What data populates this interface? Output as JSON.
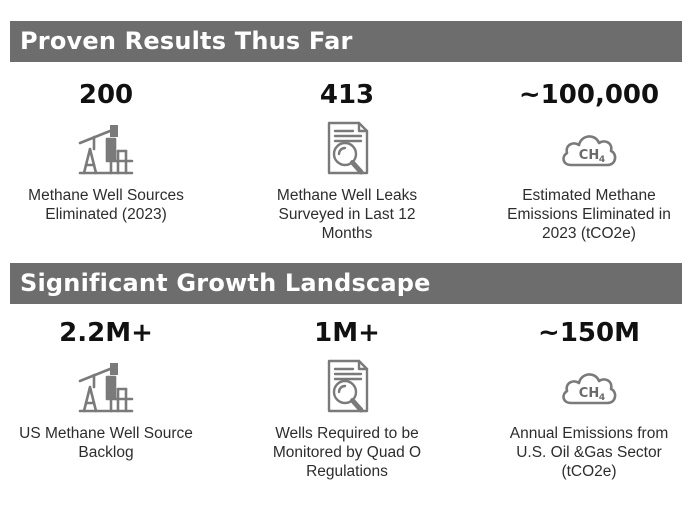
{
  "sections": [
    {
      "title": "Proven Results Thus Far",
      "stats": [
        {
          "value": "200",
          "icon": "pumpjack-icon",
          "label_lines": [
            "Methane Well Sources",
            "Eliminated (2023)"
          ]
        },
        {
          "value": "413",
          "icon": "document-magnifier-icon",
          "label_lines": [
            "Methane Well Leaks",
            "Surveyed in Last 12",
            "Months"
          ]
        },
        {
          "value": "~100,000",
          "icon": "ch4-cloud-icon",
          "label_lines": [
            "Estimated Methane",
            "Emissions Eliminated in",
            "2023 (tCO2e)"
          ]
        }
      ]
    },
    {
      "title": "Significant Growth Landscape",
      "stats": [
        {
          "value": "2.2M+",
          "icon": "pumpjack-icon",
          "label_lines": [
            "US Methane Well Source",
            "Backlog"
          ]
        },
        {
          "value": "1M+",
          "icon": "document-magnifier-icon",
          "label_lines": [
            "Wells Required to be",
            "Monitored by Quad O",
            "Regulations"
          ]
        },
        {
          "value": "~150M",
          "icon": "ch4-cloud-icon",
          "label_lines": [
            "Annual Emissions from",
            "U.S. Oil &Gas Sector",
            "(tCO2e)"
          ]
        }
      ]
    }
  ],
  "cloud_text": "CH4",
  "colors": {
    "banner_bg": "#6d6d6d",
    "banner_text": "#ffffff",
    "icon": "#7a7a7a",
    "value_text": "#111111"
  }
}
